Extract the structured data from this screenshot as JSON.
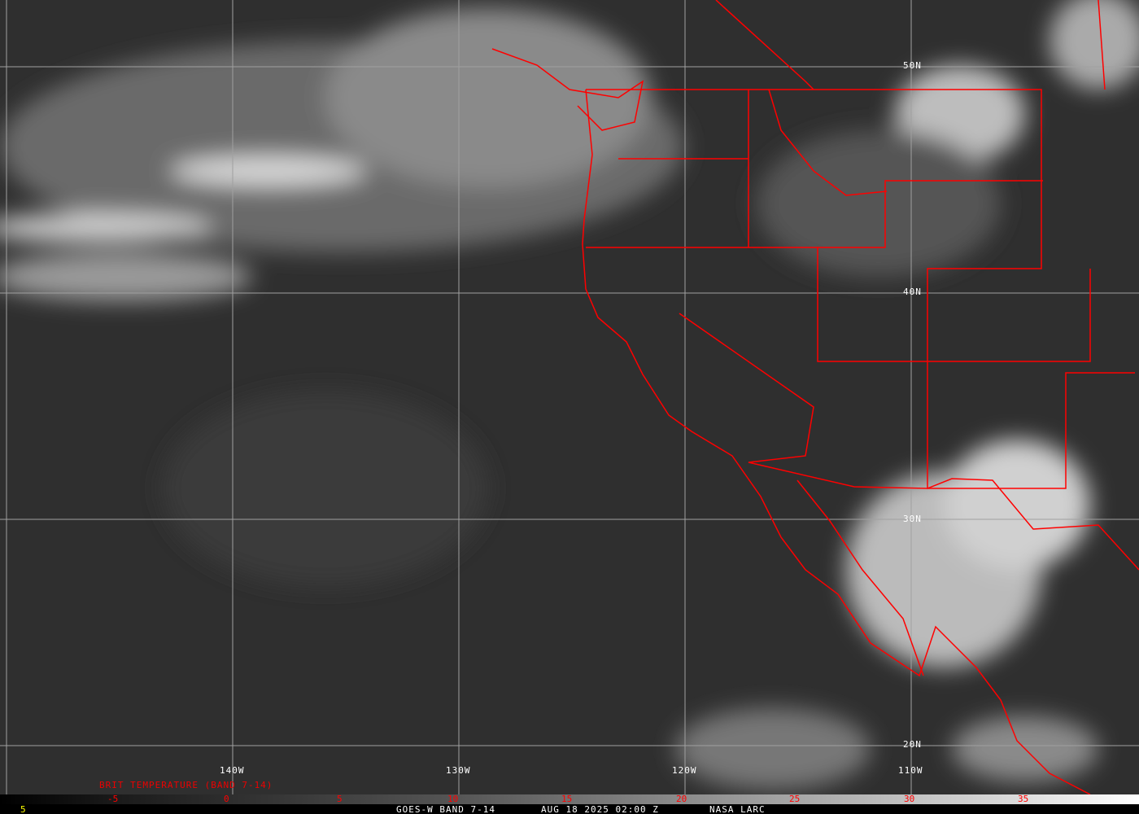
{
  "map": {
    "lat_labels": [
      "50N",
      "40N",
      "30N",
      "20N"
    ],
    "lon_labels": [
      "140W",
      "130W",
      "120W",
      "110W"
    ],
    "border_color": "#ff0000",
    "grid_color": "#a0a0a0"
  },
  "legend": {
    "title": "BRIT TEMPERATURE (BAND 7-14)",
    "ticks": [
      "-5",
      "0",
      "5",
      "10",
      "15",
      "20",
      "25",
      "30",
      "35"
    ],
    "corner_value": "5"
  },
  "footer": {
    "satellite": "GOES-W BAND 7-14",
    "datetime": "AUG 18 2025 02:00 Z",
    "source": "NASA LARC"
  }
}
